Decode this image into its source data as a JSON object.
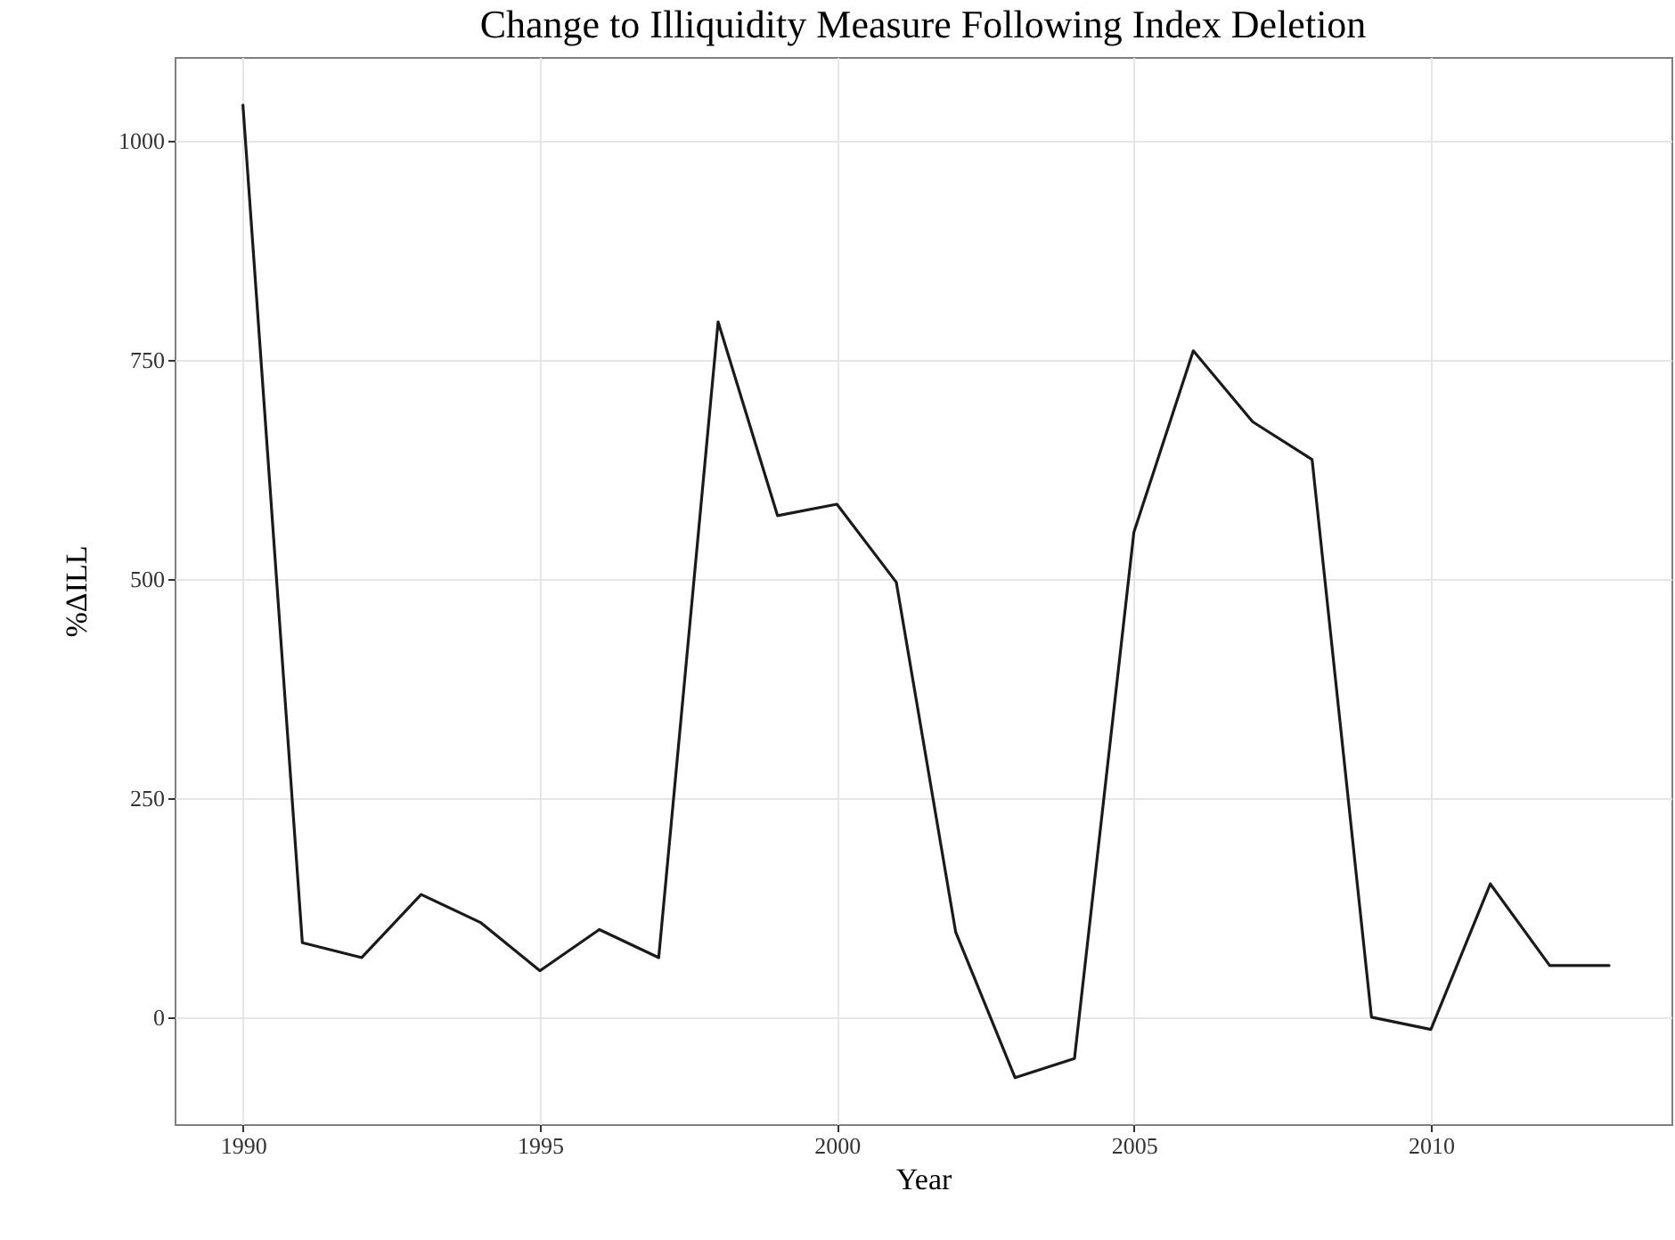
{
  "chart_data": {
    "type": "line",
    "title": "Change to Illiquidity Measure Following Index Deletion",
    "xlabel": "Year",
    "ylabel": "%ΔILL",
    "x": [
      1990,
      1991,
      1992,
      1993,
      1994,
      1995,
      1996,
      1997,
      1998,
      1999,
      2000,
      2001,
      2002,
      2003,
      2004,
      2005,
      2006,
      2007,
      2008,
      2009,
      2010,
      2011,
      2012,
      2013
    ],
    "series": [
      {
        "color": "#1a1a1a",
        "values": [
          1040,
          85,
          68,
          140,
          108,
          53,
          100,
          68,
          793,
          572,
          585,
          496,
          97,
          -69,
          -47,
          553,
          760,
          679,
          636,
          0,
          -14,
          152,
          59,
          59
        ]
      }
    ],
    "xlim": [
      1988.85,
      2014.05
    ],
    "xticks": [
      1990,
      1995,
      2000,
      2005,
      2010
    ],
    "ylim": [
      -122,
      1095
    ],
    "yticks": [
      0,
      250,
      500,
      750,
      1000
    ],
    "grid": true,
    "marker": "none",
    "line_style": "solid"
  }
}
